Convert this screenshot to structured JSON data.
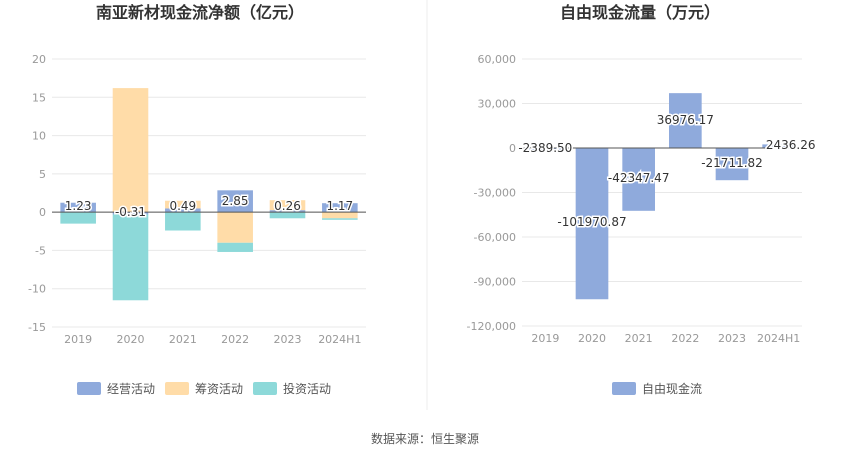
{
  "source_text": "数据来源：恒生聚源",
  "chart_data": [
    {
      "type": "bar",
      "stacked": true,
      "title": "南亚新材现金流净额（亿元）",
      "categories": [
        "2019",
        "2020",
        "2021",
        "2022",
        "2023",
        "2024H1"
      ],
      "ylim": [
        -15,
        20
      ],
      "yticks": [
        20,
        15,
        10,
        5,
        0,
        -5,
        -10,
        -15
      ],
      "grid": true,
      "legend": "bottom",
      "series": [
        {
          "name": "经营活动",
          "color": "#8faadc",
          "values": [
            1.23,
            -0.31,
            0.49,
            2.85,
            0.26,
            1.17
          ]
        },
        {
          "name": "筹资活动",
          "color": "#ffdca8",
          "values": [
            0.0,
            16.2,
            1.0,
            -4.0,
            1.3,
            -0.8
          ]
        },
        {
          "name": "投资活动",
          "color": "#8dd9d9",
          "values": [
            -1.5,
            -11.2,
            -2.4,
            -1.2,
            -0.8,
            -0.2
          ]
        }
      ],
      "data_labels": [
        "1.23",
        "-0.31",
        "0.49",
        "2.85",
        "0.26",
        "1.17"
      ]
    },
    {
      "type": "bar",
      "title": "自由现金流量（万元）",
      "categories": [
        "2019",
        "2020",
        "2021",
        "2022",
        "2023",
        "2024H1"
      ],
      "ylim": [
        -120000,
        60000
      ],
      "yticks": [
        "60,000",
        "30,000",
        "0",
        "-30,000",
        "-60,000",
        "-90,000",
        "-120,000"
      ],
      "grid": true,
      "legend": "bottom",
      "series": [
        {
          "name": "自由现金流",
          "color": "#8faadc",
          "values": [
            -2389.5,
            -101970.87,
            -42347.47,
            36976.17,
            -21711.82,
            2436.26
          ]
        }
      ],
      "data_labels": [
        "-2389.50",
        "-101970.87",
        "-42347.47",
        "36976.17",
        "-21711.82",
        "2436.26"
      ]
    }
  ]
}
